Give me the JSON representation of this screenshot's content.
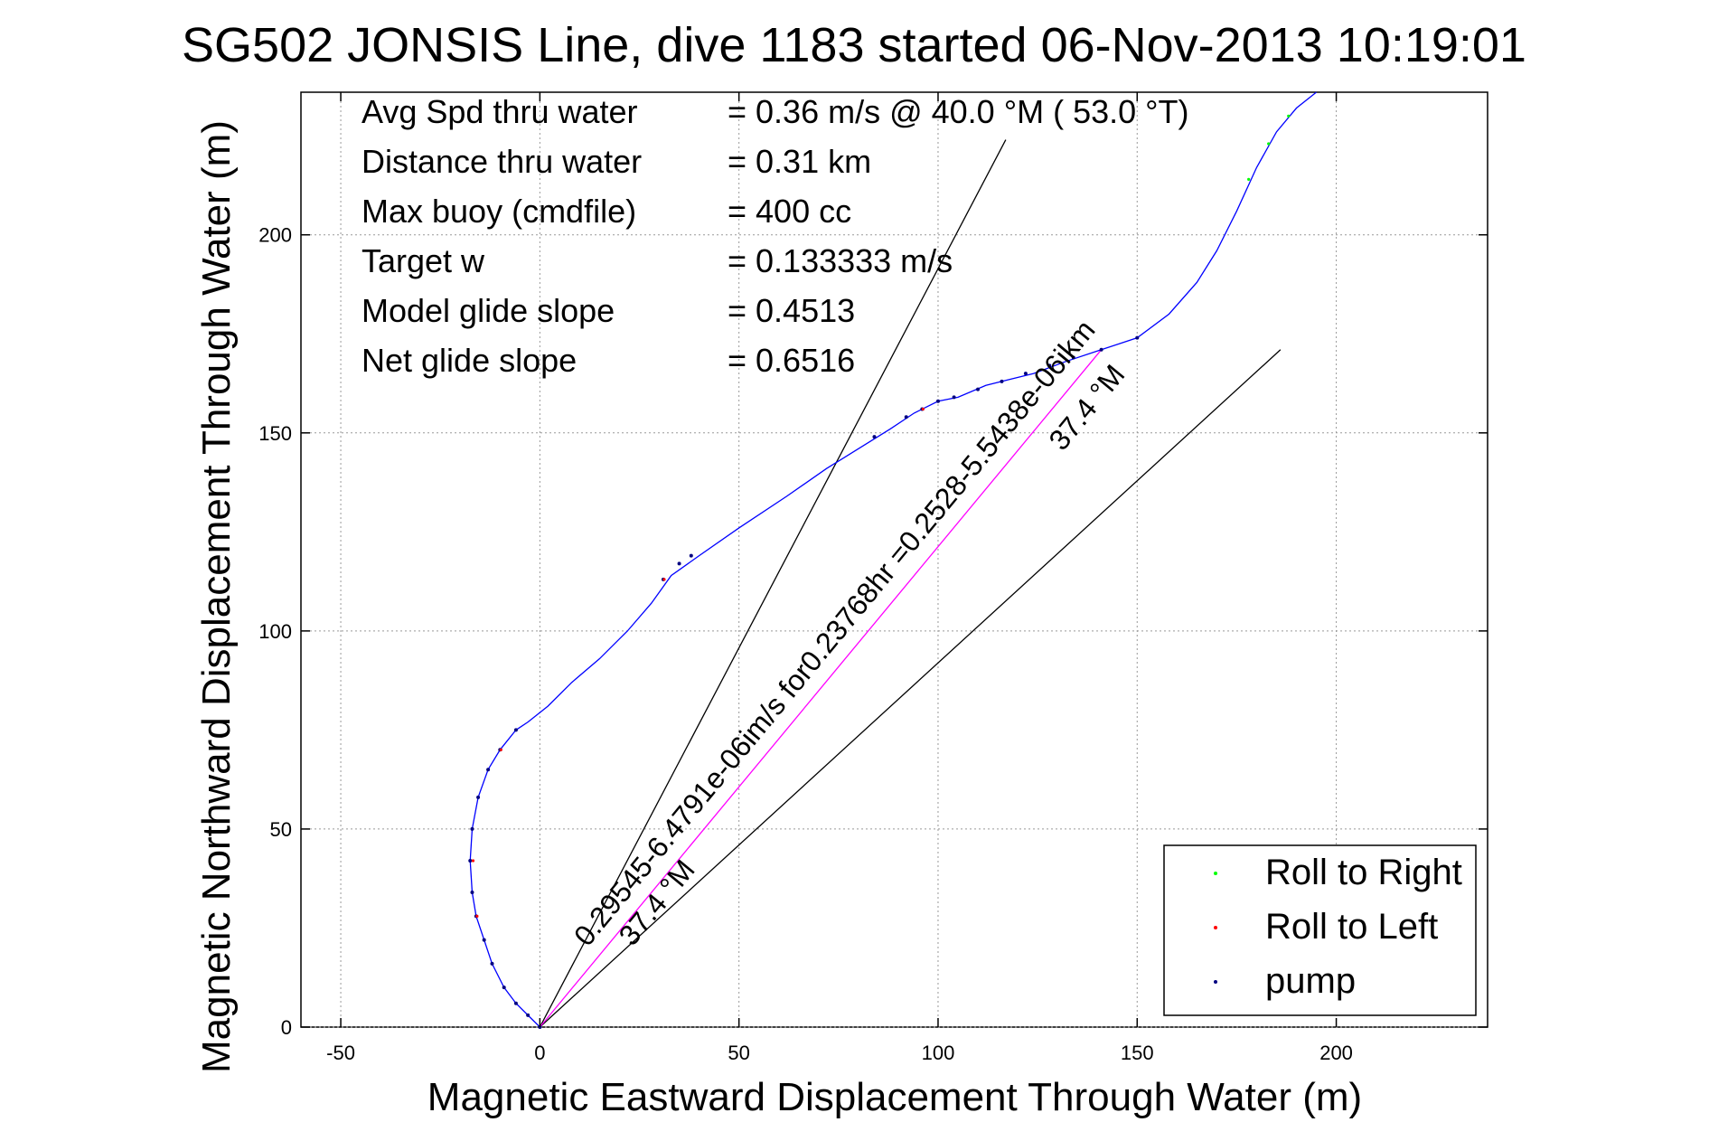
{
  "chart_data": {
    "type": "line",
    "title": "SG502 JONSIS Line, dive 1183 started 06-Nov-2013 10:19:01",
    "xlabel": "Magnetic Eastward Displacement Through Water (m)",
    "ylabel": "Magnetic Northward Displacement Through Water (m)",
    "xlim": [
      -60,
      238
    ],
    "ylim": [
      0,
      236
    ],
    "x_ticks": [
      -50,
      0,
      50,
      100,
      150,
      200
    ],
    "y_ticks": [
      0,
      50,
      100,
      150,
      200
    ],
    "grid": true,
    "legend": {
      "placement": "bottom-right",
      "entries": [
        {
          "label": "Roll to Right",
          "color": "#00ff00"
        },
        {
          "label": "Roll to Left",
          "color": "#ff0000"
        },
        {
          "label": "pump",
          "color": "#000080"
        }
      ]
    },
    "stats": [
      {
        "label": "Avg Spd thru water",
        "value": "=  0.36 m/s @  40.0 °M ( 53.0 °T)"
      },
      {
        "label": "Distance thru water",
        "value": "=  0.31 km"
      },
      {
        "label": "Max buoy (cmdfile)",
        "value": "= 400 cc"
      },
      {
        "label": "Target w",
        "value": "= 0.133333 m/s"
      },
      {
        "label": "Model glide slope",
        "value": "= 0.4513"
      },
      {
        "label": "Net glide slope",
        "value": "= 0.6516"
      }
    ],
    "track": {
      "color": "#0000ff",
      "points": [
        [
          0,
          0
        ],
        [
          -3,
          3
        ],
        [
          -6,
          6
        ],
        [
          -9,
          10
        ],
        [
          -12,
          16
        ],
        [
          -14,
          22
        ],
        [
          -16,
          28
        ],
        [
          -17,
          34
        ],
        [
          -17.5,
          42
        ],
        [
          -17,
          50
        ],
        [
          -15.5,
          58
        ],
        [
          -13,
          65
        ],
        [
          -10,
          70
        ],
        [
          -6,
          75
        ],
        [
          -3,
          77
        ],
        [
          2,
          81
        ],
        [
          8,
          87
        ],
        [
          15,
          93
        ],
        [
          22,
          100
        ],
        [
          28,
          107
        ],
        [
          33,
          114
        ],
        [
          40,
          119
        ],
        [
          50,
          126
        ],
        [
          62,
          134
        ],
        [
          72,
          141
        ],
        [
          80,
          146
        ],
        [
          88,
          151
        ],
        [
          94,
          155
        ],
        [
          100,
          158
        ],
        [
          105,
          159
        ],
        [
          112,
          162
        ],
        [
          118,
          163.5
        ],
        [
          124,
          165
        ],
        [
          132,
          168
        ],
        [
          141,
          171
        ],
        [
          150,
          174
        ],
        [
          158,
          180
        ],
        [
          165,
          188
        ],
        [
          170,
          196
        ],
        [
          175,
          206
        ],
        [
          180,
          217
        ],
        [
          185,
          226
        ],
        [
          190,
          232
        ],
        [
          195,
          236
        ]
      ],
      "pump_points": [
        [
          0,
          0
        ],
        [
          -3,
          3
        ],
        [
          -6,
          6
        ],
        [
          -9,
          10
        ],
        [
          -12,
          16
        ],
        [
          -14,
          22
        ],
        [
          -16,
          28
        ],
        [
          -17,
          34
        ],
        [
          -17.5,
          42
        ],
        [
          -17,
          50
        ],
        [
          -15.5,
          58
        ],
        [
          -13,
          65
        ],
        [
          -10,
          70
        ],
        [
          -6,
          75
        ],
        [
          31,
          113
        ],
        [
          35,
          117
        ],
        [
          38,
          119
        ],
        [
          84,
          149
        ],
        [
          92,
          154
        ],
        [
          96,
          156
        ],
        [
          100,
          158
        ],
        [
          104,
          159
        ],
        [
          110,
          161
        ],
        [
          116,
          163
        ],
        [
          122,
          165
        ],
        [
          128,
          167
        ],
        [
          134,
          169
        ],
        [
          141,
          171
        ],
        [
          150,
          174
        ]
      ],
      "roll_left_points": [
        [
          -16,
          28
        ],
        [
          -17,
          42
        ],
        [
          -10,
          70
        ],
        [
          31,
          113
        ],
        [
          96,
          156
        ]
      ],
      "roll_right_points": [
        [
          178,
          214
        ],
        [
          183,
          223
        ],
        [
          188,
          230
        ]
      ]
    },
    "reference_lines": [
      {
        "name": "heading-bound-line-left",
        "from": [
          0,
          0
        ],
        "to": [
          117,
          224
        ],
        "color": "#000000"
      },
      {
        "name": "heading-bound-line-right",
        "from": [
          0,
          0
        ],
        "to": [
          186,
          171
        ],
        "color": "#000000"
      },
      {
        "name": "current-vector-line",
        "from": [
          0,
          0
        ],
        "to": [
          141,
          171
        ],
        "color": "#ff00ff"
      }
    ],
    "annotations": [
      {
        "name": "current-annotation-main",
        "line1": "0.29545-6.4791e-06im/s for0.23768hr =0.2528-5.5438e-06ikm",
        "line2": "37.4 °M",
        "at": [
          12,
          20
        ],
        "angle_deg": 50.5
      },
      {
        "name": "current-annotation-end",
        "line1": "",
        "line2": "37.4 °M",
        "at": [
          120,
          145
        ],
        "angle_deg": 50.5
      }
    ]
  }
}
